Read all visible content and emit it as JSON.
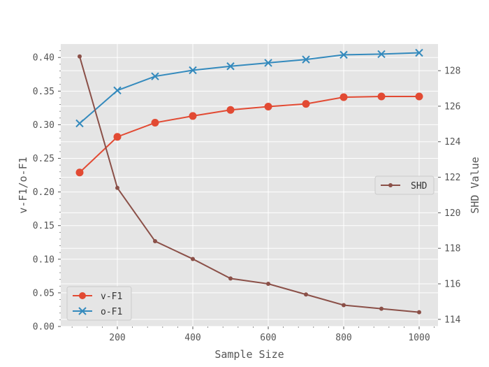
{
  "chart_data": {
    "type": "line",
    "x": [
      100,
      200,
      300,
      400,
      500,
      600,
      700,
      800,
      900,
      1000
    ],
    "xlabel": "Sample Size",
    "ylabel_left": "v-F1/o-F1",
    "ylabel_right": "SHD Value",
    "xlim": [
      50,
      1050
    ],
    "ylim_left": [
      0,
      0.42
    ],
    "ylim_right": [
      113.6,
      129.5
    ],
    "xticks": [
      200,
      400,
      600,
      800,
      1000
    ],
    "yticks_left": [
      "0.00",
      "0.05",
      "0.10",
      "0.15",
      "0.20",
      "0.25",
      "0.30",
      "0.35",
      "0.40"
    ],
    "yticks_right": [
      "114",
      "116",
      "118",
      "120",
      "122",
      "124",
      "126",
      "128"
    ],
    "grid": true,
    "series": [
      {
        "name": "v-F1",
        "axis": "left",
        "marker": "circle",
        "color": "#E24A33",
        "values": [
          0.229,
          0.282,
          0.303,
          0.313,
          0.322,
          0.327,
          0.331,
          0.341,
          0.342,
          0.342
        ]
      },
      {
        "name": "o-F1",
        "axis": "left",
        "marker": "x",
        "color": "#348ABD",
        "values": [
          0.302,
          0.351,
          0.372,
          0.381,
          0.387,
          0.392,
          0.397,
          0.404,
          0.405,
          0.407
        ]
      },
      {
        "name": "SHD",
        "axis": "right",
        "marker": "dot",
        "color": "#8B5048",
        "values": [
          128.8,
          121.4,
          118.4,
          117.4,
          116.3,
          116.0,
          115.4,
          114.8,
          114.6,
          114.4
        ]
      }
    ],
    "legends": [
      {
        "placement": "lower-left",
        "entries": [
          "v-F1",
          "o-F1"
        ]
      },
      {
        "placement": "center-right",
        "entries": [
          "SHD"
        ]
      }
    ]
  }
}
